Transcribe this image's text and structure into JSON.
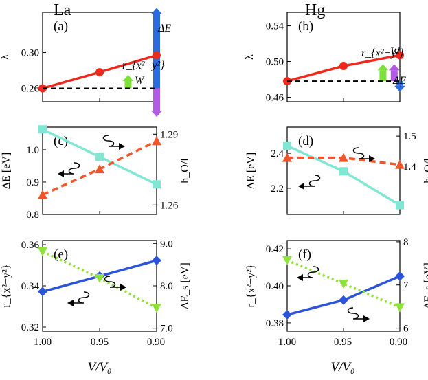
{
  "figure": {
    "col_left": "La",
    "col_right": "Hg",
    "xlabel": "V/V₀",
    "x_ticks": [
      "1.00",
      "0.95",
      "0.90"
    ]
  },
  "colors": {
    "red": "#ee2a1e",
    "cyan": "#7fe7d3",
    "orange": "#f2552a",
    "blue": "#2c54d8",
    "green": "#8ee23a",
    "purple": "#b45be6",
    "arrow_blue": "#2a6be0",
    "arrow_green": "#7ee03a"
  },
  "chart_data": [
    {
      "id": "a",
      "label": "(a)",
      "type": "line",
      "x": [
        1.0,
        0.95,
        0.9
      ],
      "ylabel_left": "λ",
      "ylim": [
        0.245,
        0.345
      ],
      "yticks": [
        0.26,
        0.3
      ],
      "yticklabels": [
        "0.26",
        "0.30"
      ],
      "series": [
        {
          "name": "λ",
          "axis": "left",
          "values": [
            0.26,
            0.278,
            0.297
          ],
          "marker": "circle",
          "color": "#ee2a1e",
          "dash": "solid"
        },
        {
          "name": "baseline",
          "axis": "left",
          "values": [
            0.26,
            0.26,
            0.26
          ],
          "marker": "none",
          "color": "#000000",
          "dash": "dashed"
        }
      ],
      "annotations": [
        "ΔE",
        "r_{x²−y²}",
        "W"
      ],
      "bars": [
        {
          "name": "ΔE",
          "x": 0.9,
          "from": 0.26,
          "to": 0.35,
          "color": "#2a6be0"
        },
        {
          "name": "r",
          "x": 0.925,
          "from": 0.26,
          "to": 0.275,
          "color": "#7ee03a"
        },
        {
          "name": "W",
          "x": 0.9,
          "from": 0.26,
          "to": 0.228,
          "color": "#b45be6"
        }
      ]
    },
    {
      "id": "b",
      "label": "(b)",
      "type": "line",
      "x": [
        1.0,
        0.95,
        0.9
      ],
      "ylabel_left": "λ",
      "ylim": [
        0.455,
        0.555
      ],
      "yticks": [
        0.46,
        0.5,
        0.54
      ],
      "yticklabels": [
        "0.46",
        "0.50",
        "0.54"
      ],
      "series": [
        {
          "name": "λ",
          "axis": "left",
          "values": [
            0.478,
            0.495,
            0.507
          ],
          "marker": "circle",
          "color": "#ee2a1e",
          "dash": "solid"
        },
        {
          "name": "baseline",
          "axis": "left",
          "values": [
            0.478,
            0.478,
            0.478
          ],
          "marker": "none",
          "color": "#000000",
          "dash": "dashed"
        }
      ],
      "annotations": [
        "ΔE",
        "r_{x²−y²}",
        "W"
      ],
      "bars": [
        {
          "name": "r",
          "x": 0.915,
          "from": 0.478,
          "to": 0.497,
          "color": "#7ee03a"
        },
        {
          "name": "W",
          "x": 0.905,
          "from": 0.478,
          "to": 0.497,
          "color": "#b45be6"
        },
        {
          "name": "ΔE",
          "x": 0.9,
          "from": 0.478,
          "to": 0.466,
          "color": "#2a6be0"
        }
      ]
    },
    {
      "id": "c",
      "label": "(c)",
      "type": "line",
      "x": [
        1.0,
        0.95,
        0.9
      ],
      "ylabel_left": "ΔE [eV]",
      "ylabel_right": "h_O/l",
      "ylim": [
        0.8,
        1.07
      ],
      "yticks": [
        0.8,
        0.9,
        1.0
      ],
      "yticklabels": [
        "0.8",
        "0.9",
        "1.0"
      ],
      "ylim_right": [
        1.256,
        1.293
      ],
      "yticks_right": [
        1.26,
        1.29
      ],
      "yticklabels_right": [
        "1.26",
        "1.29"
      ],
      "series": [
        {
          "name": "ΔE",
          "axis": "left",
          "values": [
            1.063,
            0.978,
            0.893
          ],
          "marker": "square",
          "color": "#7fe7d3",
          "dash": "solid"
        },
        {
          "name": "h_O/l",
          "axis": "right",
          "values": [
            1.2643,
            1.2752,
            1.2871
          ],
          "marker": "triangle-up",
          "color": "#f2552a",
          "dash": "dashed"
        }
      ]
    },
    {
      "id": "d",
      "label": "(d)",
      "type": "line",
      "x": [
        1.0,
        0.95,
        0.9
      ],
      "ylabel_left": "ΔE [eV]",
      "ylabel_right": "h_O/l",
      "ylim": [
        2.05,
        2.55
      ],
      "yticks": [
        2.2,
        2.4
      ],
      "yticklabels": [
        "2.2",
        "2.4"
      ],
      "ylim_right": [
        1.24,
        1.53
      ],
      "yticks_right": [
        1.4,
        1.5
      ],
      "yticklabels_right": [
        "1.4",
        "1.5"
      ],
      "series": [
        {
          "name": "ΔE",
          "axis": "left",
          "values": [
            2.443,
            2.297,
            2.103
          ],
          "marker": "square",
          "color": "#7fe7d3",
          "dash": "solid"
        },
        {
          "name": "h_O/l",
          "axis": "right",
          "values": [
            1.428,
            1.428,
            1.405
          ],
          "marker": "triangle-up",
          "color": "#f2552a",
          "dash": "dashed"
        }
      ]
    },
    {
      "id": "e",
      "label": "(e)",
      "type": "line",
      "x": [
        1.0,
        0.95,
        0.9
      ],
      "ylabel_left": "r_{x²−y²}",
      "ylabel_right": "ΔE_s [eV]",
      "ylim": [
        0.318,
        0.362
      ],
      "yticks": [
        0.32,
        0.34,
        0.36
      ],
      "yticklabels": [
        "0.32",
        "0.34",
        "0.36"
      ],
      "ylim_right": [
        6.93,
        9.07
      ],
      "yticks_right": [
        7.0,
        8.0,
        9.0
      ],
      "yticklabels_right": [
        "7.0",
        "8.0",
        "9.0"
      ],
      "series": [
        {
          "name": "r_{x²−y²}",
          "axis": "left",
          "values": [
            0.3372,
            0.3447,
            0.3523
          ],
          "marker": "diamond",
          "color": "#2c54d8",
          "dash": "solid"
        },
        {
          "name": "ΔE_s",
          "axis": "right",
          "values": [
            8.81,
            8.18,
            7.48
          ],
          "marker": "triangle-down",
          "color": "#8ee23a",
          "dash": "dotted"
        }
      ]
    },
    {
      "id": "f",
      "label": "(f)",
      "type": "line",
      "x": [
        1.0,
        0.95,
        0.9
      ],
      "ylabel_left": "r_{x²−y²}",
      "ylabel_right": "ΔE_s [eV]",
      "ylim": [
        0.3755,
        0.4245
      ],
      "yticks": [
        0.38,
        0.4,
        0.42
      ],
      "yticklabels": [
        "0.38",
        "0.40",
        "0.42"
      ],
      "ylim_right": [
        5.93,
        8.03
      ],
      "yticks_right": [
        6,
        7,
        8
      ],
      "yticklabels_right": [
        "6",
        "7",
        "8"
      ],
      "series": [
        {
          "name": "r_{x²−y²}",
          "axis": "left",
          "values": [
            0.3844,
            0.3923,
            0.4052
          ],
          "marker": "diamond",
          "color": "#2c54d8",
          "dash": "solid"
        },
        {
          "name": "ΔE_s",
          "axis": "right",
          "values": [
            7.57,
            7.03,
            6.48
          ],
          "marker": "triangle-down",
          "color": "#8ee23a",
          "dash": "dotted"
        }
      ]
    }
  ]
}
